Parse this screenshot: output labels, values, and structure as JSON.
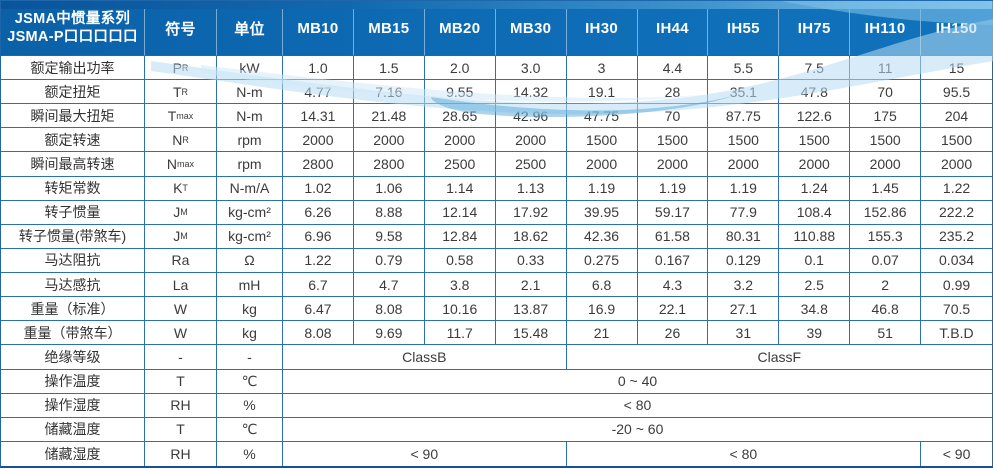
{
  "header": {
    "series_line1": "JSMA中惯量系列",
    "series_line2": "JSMA-P口口口口口",
    "symbol_col": "符号",
    "unit_col": "单位",
    "models": [
      "MB10",
      "MB15",
      "MB20",
      "MB30",
      "IH30",
      "IH44",
      "IH55",
      "IH75",
      "IH110",
      "IH150"
    ]
  },
  "rows": [
    {
      "label": "额定输出功率",
      "symbol": "P",
      "sub": "R",
      "unit": "kW",
      "cells": [
        {
          "t": "1.0"
        },
        {
          "t": "1.5"
        },
        {
          "t": "2.0"
        },
        {
          "t": "3.0"
        },
        {
          "t": "3"
        },
        {
          "t": "4.4"
        },
        {
          "t": "5.5"
        },
        {
          "t": "7.5"
        },
        {
          "t": "11"
        },
        {
          "t": "15"
        }
      ]
    },
    {
      "label": "额定扭矩",
      "symbol": "T",
      "sub": "R",
      "unit": "N-m",
      "cells": [
        {
          "t": "4.77"
        },
        {
          "t": "7.16"
        },
        {
          "t": "9.55"
        },
        {
          "t": "14.32"
        },
        {
          "t": "19.1"
        },
        {
          "t": "28"
        },
        {
          "t": "35.1"
        },
        {
          "t": "47.8"
        },
        {
          "t": "70"
        },
        {
          "t": "95.5"
        }
      ]
    },
    {
      "label": "瞬间最大扭矩",
      "symbol": "T",
      "sub": "max",
      "unit": "N-m",
      "cells": [
        {
          "t": "14.31"
        },
        {
          "t": "21.48"
        },
        {
          "t": "28.65"
        },
        {
          "t": "42.96"
        },
        {
          "t": "47.75"
        },
        {
          "t": "70"
        },
        {
          "t": "87.75"
        },
        {
          "t": "122.6"
        },
        {
          "t": "175"
        },
        {
          "t": "204"
        }
      ]
    },
    {
      "label": "额定转速",
      "symbol": "N",
      "sub": "R",
      "unit": "rpm",
      "cells": [
        {
          "t": "2000"
        },
        {
          "t": "2000"
        },
        {
          "t": "2000"
        },
        {
          "t": "2000"
        },
        {
          "t": "1500"
        },
        {
          "t": "1500"
        },
        {
          "t": "1500"
        },
        {
          "t": "1500"
        },
        {
          "t": "1500"
        },
        {
          "t": "1500"
        }
      ]
    },
    {
      "label": "瞬间最高转速",
      "symbol": "N",
      "sub": "max",
      "unit": "rpm",
      "cells": [
        {
          "t": "2800"
        },
        {
          "t": "2800"
        },
        {
          "t": "2500"
        },
        {
          "t": "2500"
        },
        {
          "t": "2000"
        },
        {
          "t": "2000"
        },
        {
          "t": "2000"
        },
        {
          "t": "2000"
        },
        {
          "t": "2000"
        },
        {
          "t": "2000"
        }
      ]
    },
    {
      "label": "转矩常数",
      "symbol": "K",
      "sub": "T",
      "unit": "N-m/A",
      "cells": [
        {
          "t": "1.02"
        },
        {
          "t": "1.06"
        },
        {
          "t": "1.14"
        },
        {
          "t": "1.13"
        },
        {
          "t": "1.19"
        },
        {
          "t": "1.19"
        },
        {
          "t": "1.19"
        },
        {
          "t": "1.24"
        },
        {
          "t": "1.45"
        },
        {
          "t": "1.22"
        }
      ]
    },
    {
      "label": "转子惯量",
      "symbol": "J",
      "sub": "M",
      "unit": "kg-cm²",
      "cells": [
        {
          "t": "6.26"
        },
        {
          "t": "8.88"
        },
        {
          "t": "12.14"
        },
        {
          "t": "17.92"
        },
        {
          "t": "39.95"
        },
        {
          "t": "59.17"
        },
        {
          "t": "77.9"
        },
        {
          "t": "108.4"
        },
        {
          "t": "152.86"
        },
        {
          "t": "222.2"
        }
      ]
    },
    {
      "label": "转子惯量(带煞车)",
      "symbol": "J",
      "sub": "M",
      "unit": "kg-cm²",
      "cells": [
        {
          "t": "6.96"
        },
        {
          "t": "9.58"
        },
        {
          "t": "12.84"
        },
        {
          "t": "18.62"
        },
        {
          "t": "42.36"
        },
        {
          "t": "61.58"
        },
        {
          "t": "80.31"
        },
        {
          "t": "110.88"
        },
        {
          "t": "155.3"
        },
        {
          "t": "235.2"
        }
      ]
    },
    {
      "label": "马达阻抗",
      "symbol": "Ra",
      "sub": "",
      "unit": "Ω",
      "cells": [
        {
          "t": "1.22"
        },
        {
          "t": "0.79"
        },
        {
          "t": "0.58"
        },
        {
          "t": "0.33"
        },
        {
          "t": "0.275"
        },
        {
          "t": "0.167"
        },
        {
          "t": "0.129"
        },
        {
          "t": "0.1"
        },
        {
          "t": "0.07"
        },
        {
          "t": "0.034"
        }
      ]
    },
    {
      "label": "马达感抗",
      "symbol": "La",
      "sub": "",
      "unit": "mH",
      "cells": [
        {
          "t": "6.7"
        },
        {
          "t": "4.7"
        },
        {
          "t": "3.8"
        },
        {
          "t": "2.1"
        },
        {
          "t": "6.8"
        },
        {
          "t": "4.3"
        },
        {
          "t": "3.2"
        },
        {
          "t": "2.5"
        },
        {
          "t": "2"
        },
        {
          "t": "0.99"
        }
      ]
    },
    {
      "label": "重量（标准）",
      "symbol": "W",
      "sub": "",
      "unit": "kg",
      "cells": [
        {
          "t": "6.47"
        },
        {
          "t": "8.08"
        },
        {
          "t": "10.16"
        },
        {
          "t": "13.87"
        },
        {
          "t": "16.9"
        },
        {
          "t": "22.1"
        },
        {
          "t": "27.1"
        },
        {
          "t": "34.8"
        },
        {
          "t": "46.8"
        },
        {
          "t": "70.5"
        }
      ]
    },
    {
      "label": "重量（带煞车）",
      "symbol": "W",
      "sub": "",
      "unit": "kg",
      "cells": [
        {
          "t": "8.08"
        },
        {
          "t": "9.69"
        },
        {
          "t": "11.7"
        },
        {
          "t": "15.48"
        },
        {
          "t": "21"
        },
        {
          "t": "26"
        },
        {
          "t": "31"
        },
        {
          "t": "39"
        },
        {
          "t": "51"
        },
        {
          "t": "T.B.D"
        }
      ]
    },
    {
      "label": "绝缘等级",
      "symbol": "-",
      "sub": "",
      "unit": "-",
      "cells": [
        {
          "t": "ClassB",
          "span": 4
        },
        {
          "t": "ClassF",
          "span": 6
        }
      ]
    },
    {
      "label": "操作温度",
      "symbol": "T",
      "sub": "",
      "unit": "℃",
      "cells": [
        {
          "t": "0 ~ 40",
          "span": 10
        }
      ]
    },
    {
      "label": "操作湿度",
      "symbol": "RH",
      "sub": "",
      "unit": "%",
      "cells": [
        {
          "t": "< 80",
          "span": 10
        }
      ]
    },
    {
      "label": "储藏温度",
      "symbol": "T",
      "sub": "",
      "unit": "℃",
      "cells": [
        {
          "t": "-20 ~ 60",
          "span": 10
        }
      ]
    },
    {
      "label": "储藏湿度",
      "symbol": "RH",
      "sub": "",
      "unit": "%",
      "cells": [
        {
          "t": "< 90",
          "span": 4
        },
        {
          "t": "< 80",
          "span": 5
        },
        {
          "t": "< 90",
          "span": 1
        }
      ]
    }
  ],
  "colors": {
    "header_bg": "#0d6bb4",
    "header_strip_light": "#8ac8ec",
    "border": "#2a70b2",
    "swoosh_light": "#b6dcf2",
    "swoosh_mid": "#5aa7da",
    "text": "#3b3b3b"
  }
}
